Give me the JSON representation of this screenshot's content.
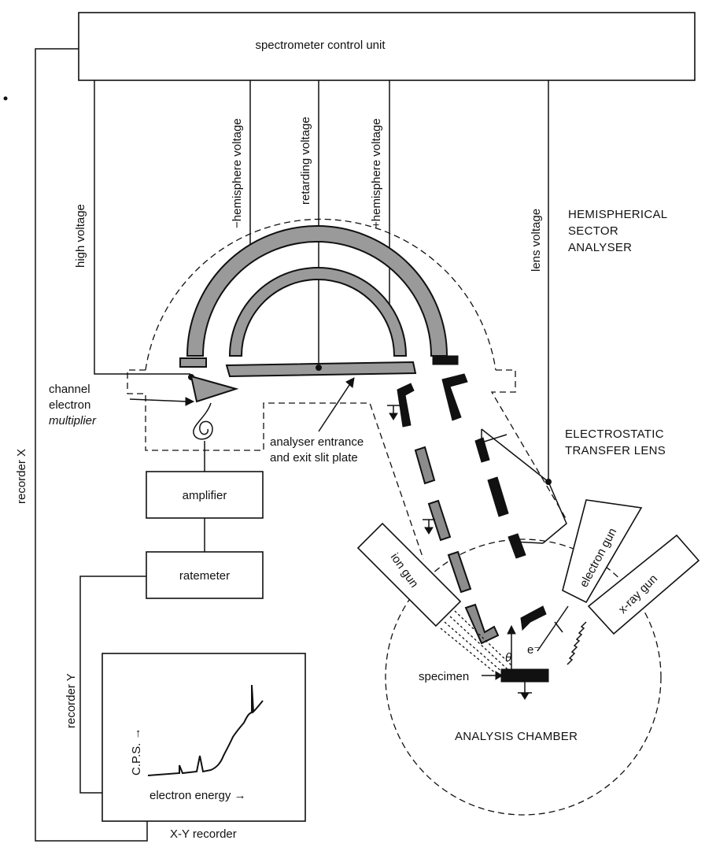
{
  "labels": {
    "control_unit": "spectrometer control unit",
    "high_voltage": "high voltage",
    "minus_hemisphere_voltage": "−hemisphere voltage",
    "retarding_voltage": "retarding voltage",
    "plus_hemisphere_voltage": "+hemisphere voltage",
    "lens_voltage": "lens voltage",
    "analyser_title_line1": "HEMISPHERICAL",
    "analyser_title_line2": "SECTOR",
    "analyser_title_line3": "ANALYSER",
    "lens_title_line1": "ELECTROSTATIC",
    "lens_title_line2": "TRANSFER LENS",
    "channel_line1": "channel",
    "channel_line2": "electron",
    "channel_line3": "multiplier",
    "slit_line1": "analyser entrance",
    "slit_line2": "and exit slit plate",
    "amplifier": "amplifier",
    "ratemeter": "ratemeter",
    "recorder_x": "recorder X",
    "recorder_y": "recorder Y",
    "cps": "C.P.S. →",
    "electron_energy": "electron energy →",
    "xy_recorder": "X-Y recorder",
    "ion_gun": "ion gun",
    "electron_gun": "electron gun",
    "xray_gun": "x-ray gun",
    "electron_symbol": "e⁻",
    "theta": "θ",
    "specimen": "specimen",
    "analysis_chamber": "ANALYSIS CHAMBER"
  }
}
